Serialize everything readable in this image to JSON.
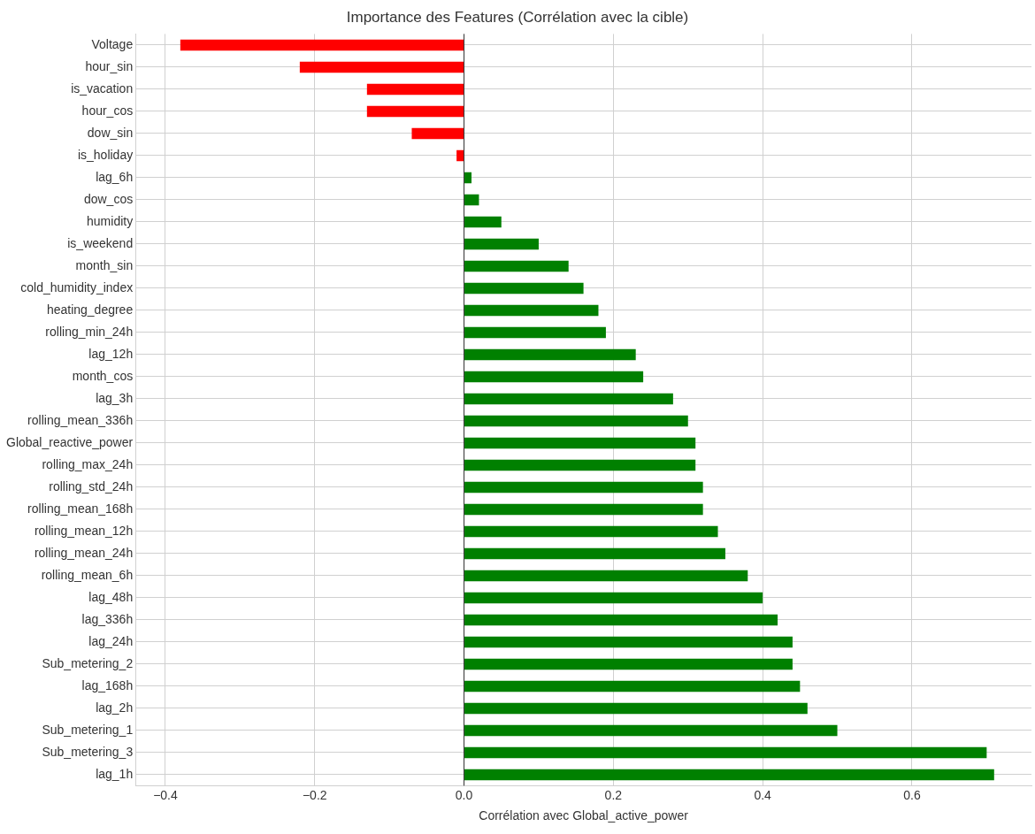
{
  "chart_data": {
    "type": "bar",
    "orientation": "horizontal",
    "title": "Importance des Features (Corrélation avec la cible)",
    "xlabel": "Corrélation avec Global_active_power",
    "categories": [
      "Voltage",
      "hour_sin",
      "is_vacation",
      "hour_cos",
      "dow_sin",
      "is_holiday",
      "lag_6h",
      "dow_cos",
      "humidity",
      "is_weekend",
      "month_sin",
      "cold_humidity_index",
      "heating_degree",
      "rolling_min_24h",
      "lag_12h",
      "month_cos",
      "lag_3h",
      "rolling_mean_336h",
      "Global_reactive_power",
      "rolling_max_24h",
      "rolling_std_24h",
      "rolling_mean_168h",
      "rolling_mean_12h",
      "rolling_mean_24h",
      "rolling_mean_6h",
      "lag_48h",
      "lag_336h",
      "lag_24h",
      "Sub_metering_2",
      "lag_168h",
      "lag_2h",
      "Sub_metering_1",
      "Sub_metering_3",
      "lag_1h"
    ],
    "values": [
      -0.38,
      -0.22,
      -0.13,
      -0.13,
      -0.07,
      -0.01,
      0.01,
      0.02,
      0.05,
      0.1,
      0.14,
      0.16,
      0.18,
      0.19,
      0.23,
      0.24,
      0.28,
      0.3,
      0.31,
      0.31,
      0.32,
      0.32,
      0.34,
      0.35,
      0.38,
      0.4,
      0.42,
      0.44,
      0.44,
      0.45,
      0.46,
      0.5,
      0.7,
      0.71
    ],
    "colors": [
      "#ff0000",
      "#ff0000",
      "#ff0000",
      "#ff0000",
      "#ff0000",
      "#ff0000",
      "#008000",
      "#008000",
      "#008000",
      "#008000",
      "#008000",
      "#008000",
      "#008000",
      "#008000",
      "#008000",
      "#008000",
      "#008000",
      "#008000",
      "#008000",
      "#008000",
      "#008000",
      "#008000",
      "#008000",
      "#008000",
      "#008000",
      "#008000",
      "#008000",
      "#008000",
      "#008000",
      "#008000",
      "#008000",
      "#008000",
      "#008000",
      "#008000"
    ],
    "xlim": [
      -0.44,
      0.76
    ],
    "xticks": [
      {
        "value": -0.4,
        "label": "−0.4"
      },
      {
        "value": -0.2,
        "label": "−0.2"
      },
      {
        "value": 0,
        "label": "0.0"
      },
      0.2,
      0.4,
      0.6
    ],
    "ref_lines": [
      {
        "axis": "x",
        "value": 0,
        "color": "#333333"
      }
    ],
    "grid": true
  }
}
